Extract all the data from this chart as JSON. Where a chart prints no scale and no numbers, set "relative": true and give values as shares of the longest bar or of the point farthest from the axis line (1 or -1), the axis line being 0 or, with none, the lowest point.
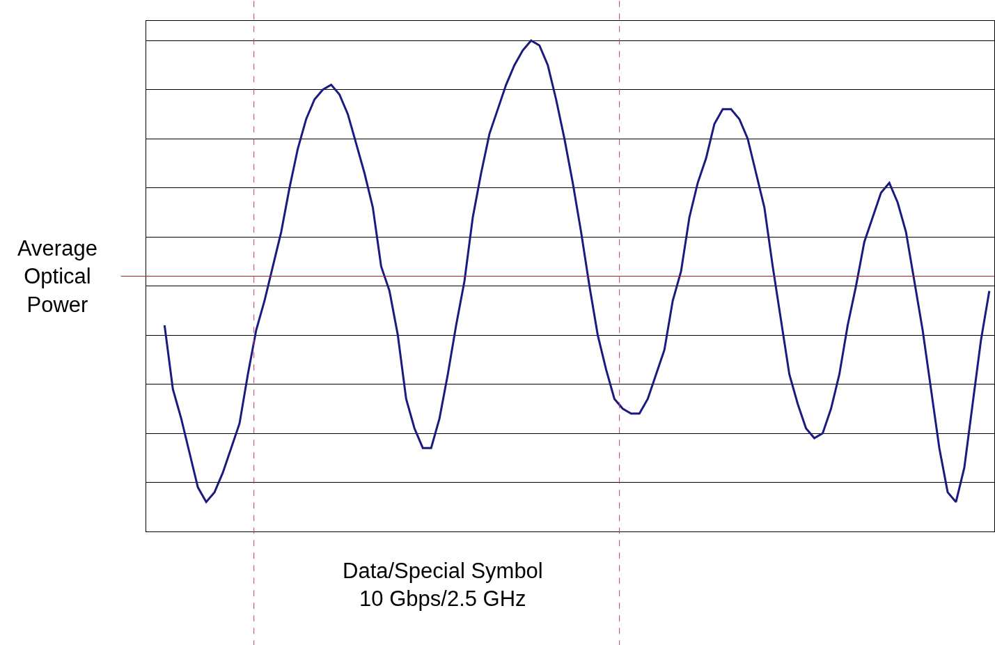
{
  "chart_data": {
    "type": "line",
    "relative": true,
    "grid": "y",
    "marker": "none",
    "line_style": "solid",
    "tick_labels": false,
    "categories": [
      null,
      null,
      null,
      null,
      null,
      null,
      null,
      null,
      null,
      null,
      null,
      null,
      null,
      null,
      null,
      null,
      null,
      null,
      null,
      null,
      null,
      null,
      null,
      null,
      null,
      null,
      null,
      null,
      null,
      null,
      null,
      null,
      null,
      null,
      null,
      null,
      null,
      null,
      null,
      null,
      null,
      null,
      null,
      null,
      null,
      null,
      null,
      null,
      null,
      null,
      null,
      null,
      null,
      null,
      null,
      null,
      null,
      null,
      null,
      null,
      null,
      null,
      null,
      null,
      null,
      null,
      null,
      null,
      null,
      null,
      null,
      null,
      null,
      null,
      null,
      null,
      null,
      null,
      null,
      null,
      null,
      null,
      null,
      null,
      null,
      null,
      null,
      null,
      null,
      null,
      null,
      null,
      null,
      null,
      null,
      null,
      null,
      null,
      null,
      null
    ],
    "series": [
      {
        "color": "#1a1a80",
        "values": [
          0.42,
          0.29,
          0.23,
          0.16,
          0.09,
          0.06,
          0.08,
          0.12,
          0.17,
          0.22,
          0.32,
          0.41,
          0.47,
          0.54,
          0.61,
          0.7,
          0.78,
          0.84,
          0.88,
          0.9,
          0.91,
          0.89,
          0.85,
          0.79,
          0.73,
          0.66,
          0.54,
          0.49,
          0.4,
          0.27,
          0.21,
          0.17,
          0.17,
          0.23,
          0.32,
          0.42,
          0.51,
          0.64,
          0.73,
          0.81,
          0.86,
          0.91,
          0.95,
          0.98,
          1.0,
          0.99,
          0.95,
          0.88,
          0.8,
          0.71,
          0.61,
          0.5,
          0.4,
          0.33,
          0.27,
          0.25,
          0.24,
          0.24,
          0.27,
          0.32,
          0.37,
          0.47,
          0.53,
          0.64,
          0.71,
          0.76,
          0.83,
          0.86,
          0.86,
          0.84,
          0.8,
          0.73,
          0.66,
          0.54,
          0.43,
          0.32,
          0.26,
          0.21,
          0.19,
          0.2,
          0.25,
          0.32,
          0.42,
          0.5,
          0.59,
          0.64,
          0.69,
          0.71,
          0.67,
          0.61,
          0.51,
          0.41,
          0.29,
          0.17,
          0.08,
          0.06,
          0.13,
          0.26,
          0.39,
          0.49
        ]
      }
    ],
    "ref_lines": [
      {
        "axis": "y",
        "value": 0.52,
        "label": "Average\nOptical\nPower",
        "color": "#aa2222",
        "line_style": "solid"
      }
    ],
    "annotations": [
      "Data/Special Symbol\n10 Gbps/2.5 GHz"
    ]
  }
}
